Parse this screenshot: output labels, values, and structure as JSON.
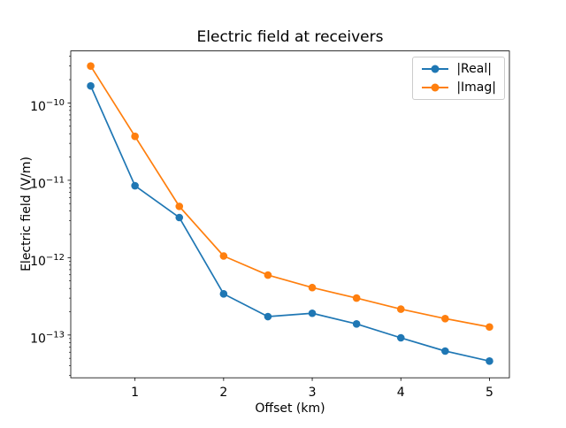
{
  "window": {
    "title": "Electric field at receivers"
  },
  "chart_data": {
    "type": "line",
    "title": "Electric field at receivers",
    "xlabel": "Offset (km)",
    "ylabel": "Electric field (V/m)",
    "x": [
      0.5,
      1.0,
      1.5,
      2.0,
      2.5,
      3.0,
      3.5,
      4.0,
      4.5,
      5.0
    ],
    "series": [
      {
        "name": "|Real|",
        "color": "#1f77b4",
        "marker": "circle",
        "values": [
          1.66e-10,
          8.5e-12,
          3.3e-12,
          3.4e-13,
          1.73e-13,
          1.91e-13,
          1.39e-13,
          9.2e-14,
          6.2e-14,
          4.6e-14
        ]
      },
      {
        "name": "|Imag|",
        "color": "#ff7f0e",
        "marker": "circle",
        "values": [
          3e-10,
          3.7e-11,
          4.6e-12,
          1.05e-12,
          5.95e-13,
          4.1e-13,
          3e-13,
          2.16e-13,
          1.63e-13,
          1.27e-13
        ]
      }
    ],
    "xlim": [
      0.275,
      5.225
    ],
    "ylim": [
      2.8e-14,
      4.7e-10
    ],
    "yscale": "log",
    "xscale": "linear",
    "x_ticks": [
      1,
      2,
      3,
      4,
      5
    ],
    "y_tick_exponents": [
      -13,
      -12,
      -11,
      -10
    ],
    "grid": false,
    "legend_position": "upper right",
    "axis_color": "#000000"
  }
}
